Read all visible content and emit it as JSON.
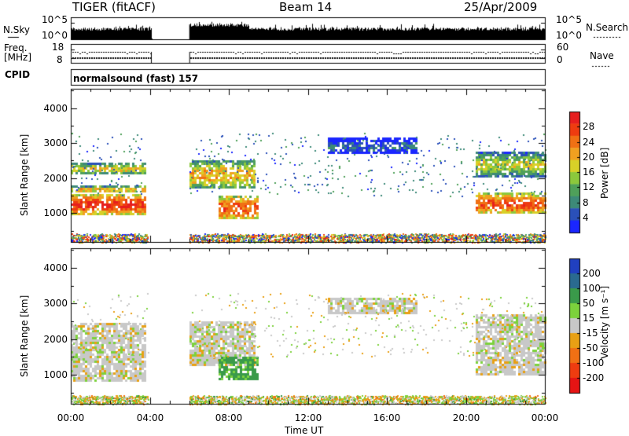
{
  "header": {
    "radar": "TIGER (fitACF)",
    "beam": "Beam 14",
    "date": "25/Apr/2009"
  },
  "nsky_panel": {
    "left_label": "N.Sky",
    "right_label": "N.Search",
    "left_ticks": [
      "10^5",
      "10^0"
    ],
    "right_ticks": [
      "10^5",
      "10^0"
    ]
  },
  "freq_panel": {
    "left_label_1": "Freq.",
    "left_label_2": "[MHz]",
    "right_label": "Nave",
    "left_ticks": [
      "18",
      "8"
    ],
    "right_ticks": [
      "60",
      "0"
    ]
  },
  "cpid": {
    "label": "CPID",
    "text": "normalsound (fast)  157"
  },
  "chart_data": [
    {
      "type": "heatmap",
      "title": "",
      "xlabel": "Time UT",
      "ylabel": "Slant Range [km]",
      "x_ticks": [
        "00:00",
        "04:00",
        "08:00",
        "12:00",
        "16:00",
        "20:00",
        "00:00"
      ],
      "y_ticks": [
        "1000",
        "2000",
        "3000",
        "4000"
      ],
      "xlim_hours": [
        0,
        24
      ],
      "ylim_km": [
        180,
        4550
      ],
      "colorbar": {
        "label": "Power [dB]",
        "ticks": [
          "4",
          "8",
          "12",
          "16",
          "20",
          "24",
          "28"
        ],
        "range": [
          0,
          32
        ],
        "colors": [
          "#1a26ff",
          "#2a50b8",
          "#3d8a78",
          "#4fa05a",
          "#8cc83c",
          "#d8d028",
          "#f0a020",
          "#f07014",
          "#ee3c10",
          "#e61e1e"
        ]
      },
      "echo_regions": [
        {
          "t0": 0.0,
          "t1": 3.8,
          "r0": 1000,
          "r1": 1550,
          "power_db": 28
        },
        {
          "t0": 0.0,
          "t1": 3.8,
          "r0": 1600,
          "r1": 1800,
          "power_db": 20
        },
        {
          "t0": 0.0,
          "t1": 3.8,
          "r0": 2150,
          "r1": 2450,
          "power_db": 18
        },
        {
          "t0": 6.0,
          "t1": 9.3,
          "r0": 1700,
          "r1": 2500,
          "power_db": 20
        },
        {
          "t0": 7.5,
          "t1": 9.5,
          "r0": 850,
          "r1": 1500,
          "power_db": 26
        },
        {
          "t0": 13.0,
          "t1": 17.5,
          "r0": 2700,
          "r1": 3150,
          "power_db": 6
        },
        {
          "t0": 20.5,
          "t1": 24.0,
          "r0": 1000,
          "r1": 1600,
          "power_db": 26
        },
        {
          "t0": 20.5,
          "t1": 24.0,
          "r0": 2050,
          "r1": 2750,
          "power_db": 16
        }
      ]
    },
    {
      "type": "heatmap",
      "title": "",
      "xlabel": "Time UT",
      "ylabel": "Slant Range [km]",
      "x_ticks": [
        "00:00",
        "04:00",
        "08:00",
        "12:00",
        "16:00",
        "20:00",
        "00:00"
      ],
      "y_ticks": [
        "1000",
        "2000",
        "3000",
        "4000"
      ],
      "xlim_hours": [
        0,
        24
      ],
      "ylim_km": [
        180,
        4550
      ],
      "colorbar": {
        "label": "Velocity [m s⁻¹]",
        "ticks": [
          "200",
          "100",
          "50",
          "15",
          "-15",
          "-50",
          "-100",
          "-200"
        ],
        "colors": [
          "#2040c0",
          "#2a6a90",
          "#3a9a4a",
          "#7cd23c",
          "#c8c8c8",
          "#e8a014",
          "#f07014",
          "#ee3c10",
          "#e61414"
        ]
      },
      "echo_regions": [
        {
          "t0": 0.0,
          "t1": 3.8,
          "r0": 800,
          "r1": 2450,
          "velocity": 0
        },
        {
          "t0": 6.0,
          "t1": 9.3,
          "r0": 1300,
          "r1": 2500,
          "velocity": 0
        },
        {
          "t0": 7.5,
          "t1": 9.5,
          "r0": 850,
          "r1": 1500,
          "velocity": 60
        },
        {
          "t0": 13.0,
          "t1": 17.5,
          "r0": 2700,
          "r1": 3150,
          "velocity": 0
        },
        {
          "t0": 20.5,
          "t1": 24.0,
          "r0": 1000,
          "r1": 2700,
          "velocity": 0
        }
      ]
    }
  ]
}
